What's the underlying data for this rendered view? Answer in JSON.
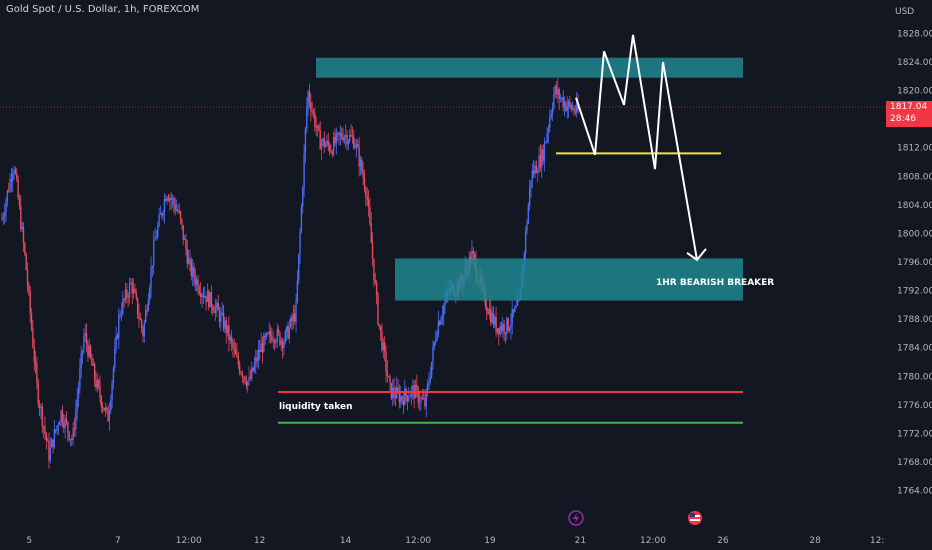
{
  "header": {
    "title": "Gold Spot / U.S. Dollar, 1h, FOREXCOM"
  },
  "price_axis": {
    "currency": "USD"
  },
  "last_price": {
    "value": "1817.04",
    "countdown": "28:46"
  },
  "annotations": {
    "liquidity": "liquidity taken",
    "breaker": "1HR BEARISH BREAKER"
  },
  "colors": {
    "background": "#131722",
    "up": "#4a6cf7",
    "down": "#e84a5f",
    "zone": "#1f8a94",
    "liquidity_line": "#f23645",
    "support_line": "#4caf50",
    "yellow_line": "#f0e040"
  },
  "icons": [
    "lightning-event-icon",
    "us-flag-event-icon"
  ],
  "chart_data": {
    "type": "candlestick",
    "title": "Gold Spot / U.S. Dollar, 1h, FOREXCOM",
    "y_ticks": [
      1764,
      1768,
      1772,
      1776,
      1780,
      1784,
      1788,
      1792,
      1796,
      1800,
      1804,
      1808,
      1812,
      1816,
      1820,
      1824,
      1828
    ],
    "y_tick_labels": [
      "1764.00",
      "1768.00",
      "1772.00",
      "1776.00",
      "1780.00",
      "1784.00",
      "1788.00",
      "1792.00",
      "1796.00",
      "1800.00",
      "1804.00",
      "1808.00",
      "1812.00",
      "1816.00",
      "1820.00",
      "1824.00",
      "1828.00"
    ],
    "ylim": [
      1761,
      1831
    ],
    "x_tick_labels": [
      "5",
      "7",
      "12:00",
      "12",
      "14",
      "12:00",
      "19",
      "21",
      "12:00",
      "26",
      "28",
      "12:"
    ],
    "close_path": [
      1802,
      1810,
      1796,
      1778,
      1769,
      1775,
      1771,
      1786,
      1779,
      1774,
      1789,
      1793,
      1786,
      1799,
      1806,
      1803,
      1795,
      1792,
      1790,
      1787,
      1782,
      1779,
      1784,
      1786,
      1785,
      1789,
      1820,
      1813,
      1812,
      1814,
      1813,
      1806,
      1788,
      1778,
      1777,
      1778,
      1776,
      1787,
      1792,
      1793,
      1797,
      1791,
      1787,
      1787,
      1790,
      1808,
      1811,
      1820,
      1818,
      1817.04
    ],
    "zones": [
      {
        "name": "upper supply",
        "y_top": 1824.6,
        "y_bottom": 1821.8
      },
      {
        "name": "1HR BEARISH BREAKER",
        "y_top": 1796.5,
        "y_bottom": 1790.6
      }
    ],
    "levels": [
      {
        "name": "liquidity taken",
        "y": 1777.8
      },
      {
        "name": "support",
        "y": 1773.5
      },
      {
        "name": "projection",
        "y": 1811.2
      }
    ],
    "projection_path": [
      1819,
      1811,
      1825.5,
      1818,
      1827.8,
      1809,
      1824,
      1796.3
    ],
    "last_price": 1817.04
  }
}
